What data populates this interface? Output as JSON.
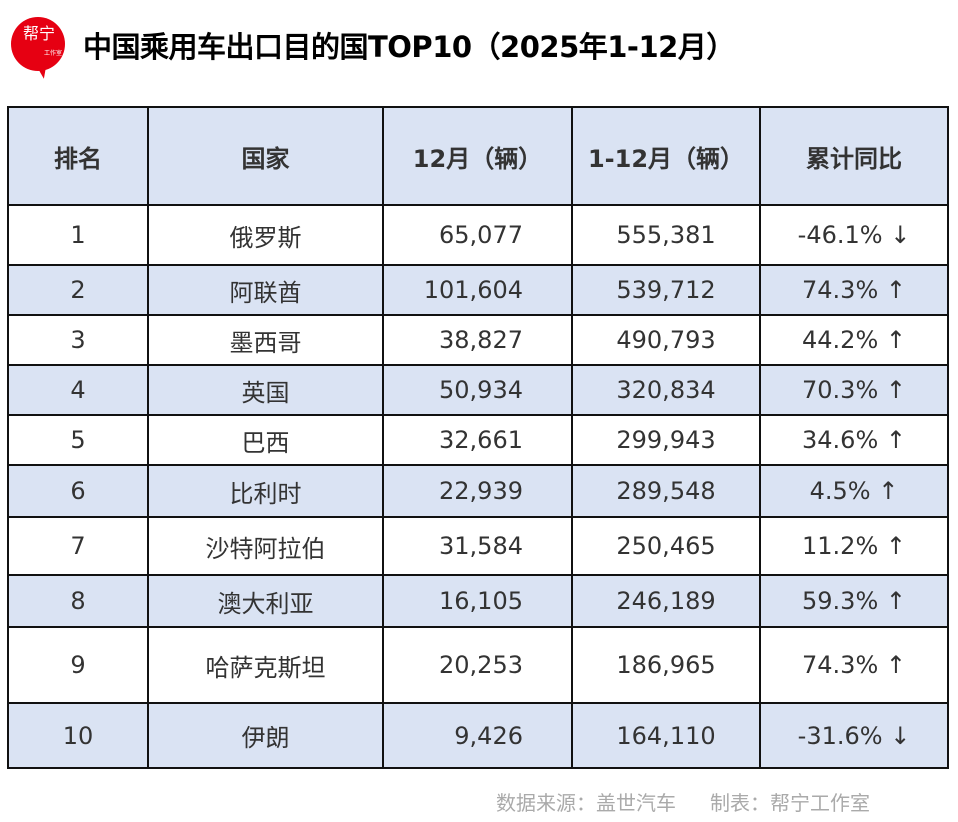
{
  "logo": {
    "line1": "帮宁",
    "line2": "工作室"
  },
  "title": "中国乘用车出口目的国TOP10（2025年1-12月）",
  "columns": [
    "排名",
    "国家",
    "12月（辆）",
    "1-12月（辆）",
    "累计同比"
  ],
  "rows": [
    {
      "rank": "1",
      "country": "俄罗斯",
      "dec": "65,077",
      "ytd": "555,381",
      "yoy": "-46.1% ↓"
    },
    {
      "rank": "2",
      "country": "阿联酋",
      "dec": "101,604",
      "ytd": "539,712",
      "yoy": "74.3% ↑"
    },
    {
      "rank": "3",
      "country": "墨西哥",
      "dec": "38,827",
      "ytd": "490,793",
      "yoy": "44.2% ↑"
    },
    {
      "rank": "4",
      "country": "英国",
      "dec": "50,934",
      "ytd": "320,834",
      "yoy": "70.3% ↑"
    },
    {
      "rank": "5",
      "country": "巴西",
      "dec": "32,661",
      "ytd": "299,943",
      "yoy": "34.6% ↑"
    },
    {
      "rank": "6",
      "country": "比利时",
      "dec": "22,939",
      "ytd": "289,548",
      "yoy": "4.5% ↑"
    },
    {
      "rank": "7",
      "country": "沙特阿拉伯",
      "dec": "31,584",
      "ytd": "250,465",
      "yoy": "11.2% ↑"
    },
    {
      "rank": "8",
      "country": "澳大利亚",
      "dec": "16,105",
      "ytd": "246,189",
      "yoy": "59.3% ↑"
    },
    {
      "rank": "9",
      "country": "哈萨克斯坦",
      "dec": "20,253",
      "ytd": "186,965",
      "yoy": "74.3% ↑"
    },
    {
      "rank": "10",
      "country": "伊朗",
      "dec": "9,426",
      "ytd": "164,110",
      "yoy": "-31.6% ↓"
    }
  ],
  "footer": {
    "source": "数据来源：盖世汽车",
    "maker": "制表：帮宁工作室"
  }
}
